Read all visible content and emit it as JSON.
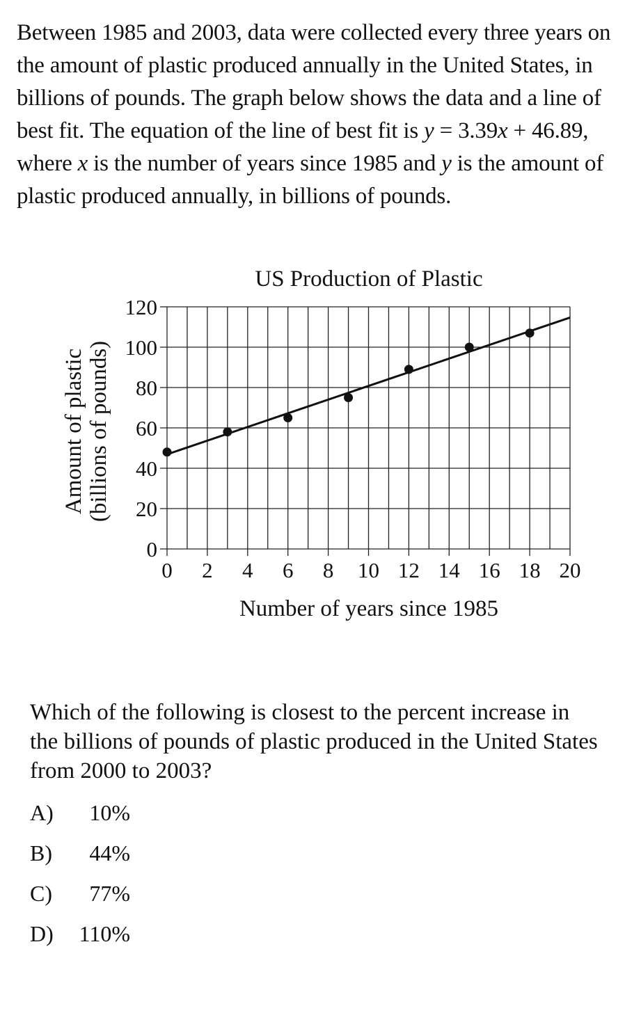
{
  "intro": {
    "p1": "Between 1985 and 2003, data were collected every three years on the amount of plastic produced annually in the United States, in billions of pounds. The graph below shows the data and a line of best fit. The equation of the line of best fit is ",
    "eq_y": "y",
    "eq_mid": " = 3.39",
    "eq_x": "x",
    "eq_end": " + 46.89, where ",
    "x_var": "x",
    "p2": " is the number of years since 1985 and ",
    "y_var": "y",
    "p3": " is the amount of plastic produced annually, in billions of pounds."
  },
  "chart_data": {
    "type": "scatter",
    "title": "US Production of Plastic",
    "xlabel": "Number of years since 1985",
    "ylabel_line1": "Amount of plastic",
    "ylabel_line2": "(billions of pounds)",
    "xlim": [
      0,
      20
    ],
    "ylim": [
      0,
      120
    ],
    "xticks": [
      "0",
      "2",
      "4",
      "6",
      "8",
      "10",
      "12",
      "14",
      "16",
      "18",
      "20"
    ],
    "yticks": [
      "0",
      "20",
      "40",
      "60",
      "80",
      "100",
      "120"
    ],
    "grid": true,
    "points": [
      {
        "x": 0,
        "y": 48
      },
      {
        "x": 3,
        "y": 58
      },
      {
        "x": 6,
        "y": 65
      },
      {
        "x": 9,
        "y": 75
      },
      {
        "x": 12,
        "y": 89
      },
      {
        "x": 15,
        "y": 100
      },
      {
        "x": 18,
        "y": 107
      }
    ],
    "fit": {
      "slope": 3.39,
      "intercept": 46.89,
      "x_range": [
        0,
        20
      ]
    }
  },
  "question": "Which of the following is closest to the percent increase in the billions of pounds of plastic produced in the United States from 2000 to 2003?",
  "choices": [
    {
      "label": "A)",
      "value": "10%"
    },
    {
      "label": "B)",
      "value": "44%"
    },
    {
      "label": "C)",
      "value": "77%"
    },
    {
      "label": "D)",
      "value": "110%"
    }
  ]
}
